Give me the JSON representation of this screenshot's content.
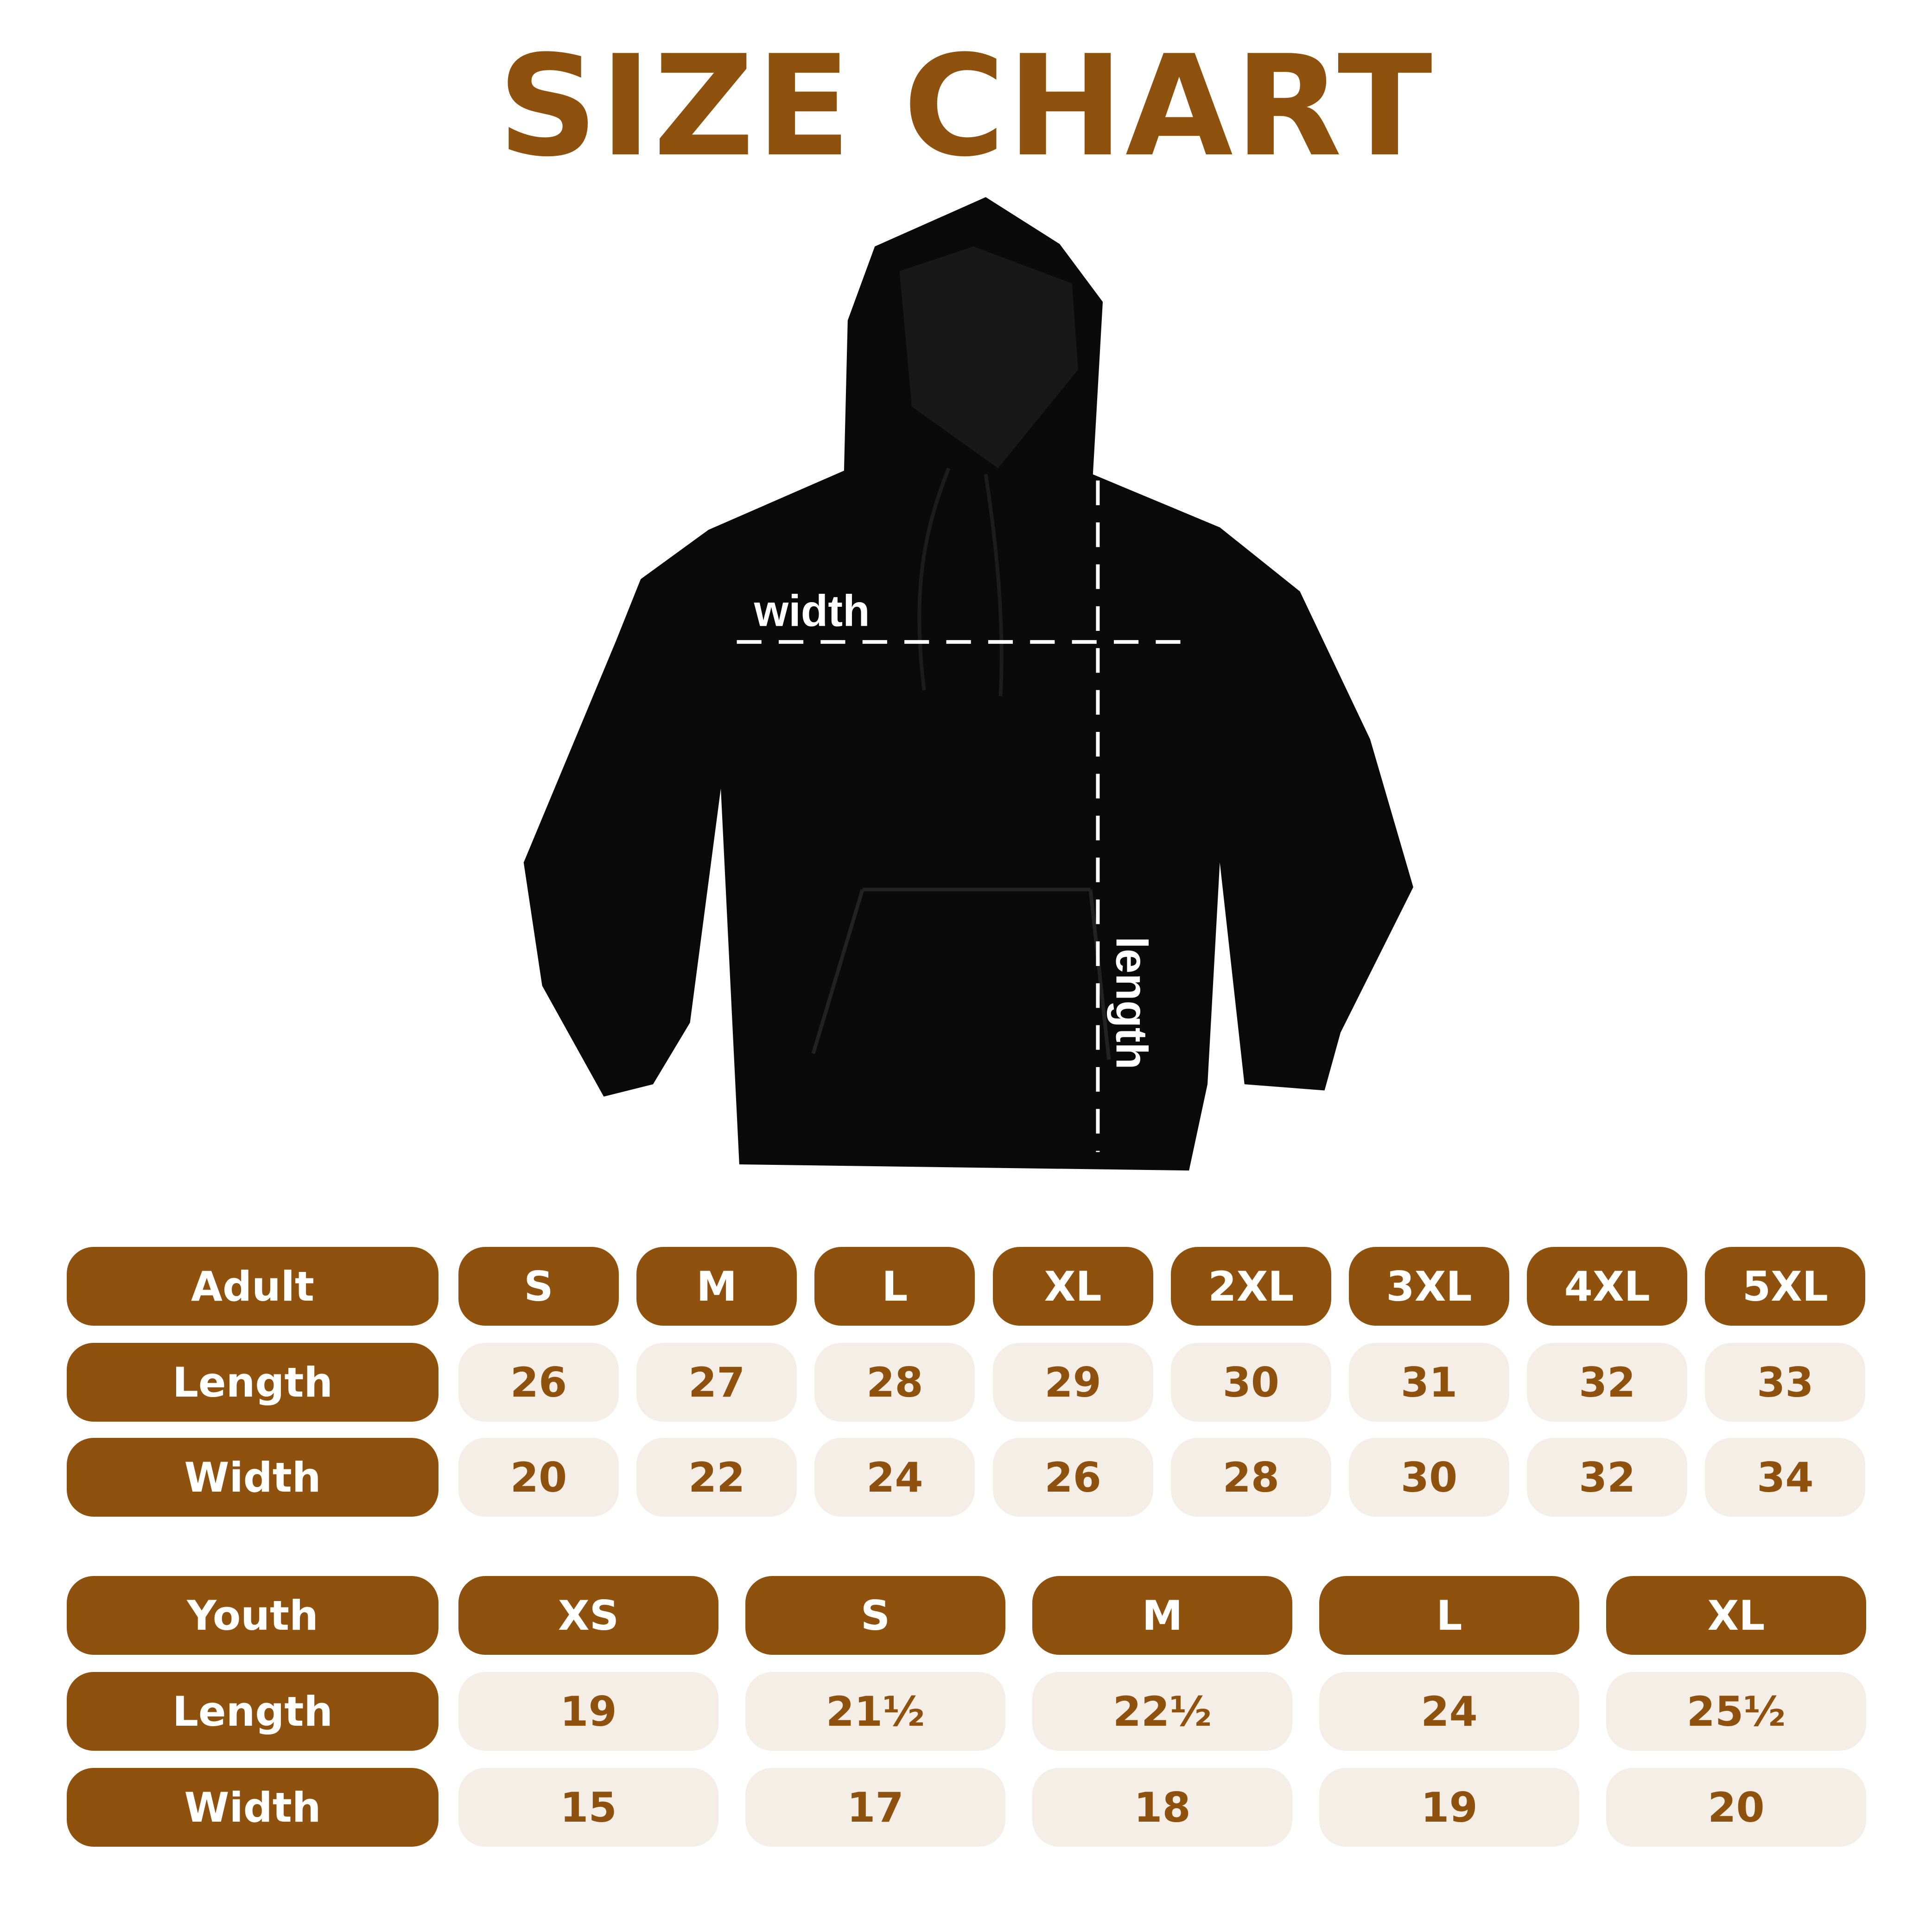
{
  "title": "SIZE CHART",
  "colors": {
    "brand": "#8f520e",
    "cell_bg": "#f4eee6",
    "garment": "#0a0a0a"
  },
  "hoodie": {
    "width_label": "width",
    "length_label": "length"
  },
  "adult": {
    "header": "Adult",
    "sizes": [
      "S",
      "M",
      "L",
      "XL",
      "2XL",
      "3XL",
      "4XL",
      "5XL"
    ],
    "rows": [
      {
        "label": "Length",
        "values": [
          "26",
          "27",
          "28",
          "29",
          "30",
          "31",
          "32",
          "33"
        ]
      },
      {
        "label": "Width",
        "values": [
          "20",
          "22",
          "24",
          "26",
          "28",
          "30",
          "32",
          "34"
        ]
      }
    ]
  },
  "youth": {
    "header": "Youth",
    "sizes": [
      "XS",
      "S",
      "M",
      "L",
      "XL"
    ],
    "rows": [
      {
        "label": "Length",
        "values": [
          "19",
          "21½",
          "22½",
          "24",
          "25½"
        ]
      },
      {
        "label": "Width",
        "values": [
          "15",
          "17",
          "18",
          "19",
          "20"
        ]
      }
    ]
  }
}
